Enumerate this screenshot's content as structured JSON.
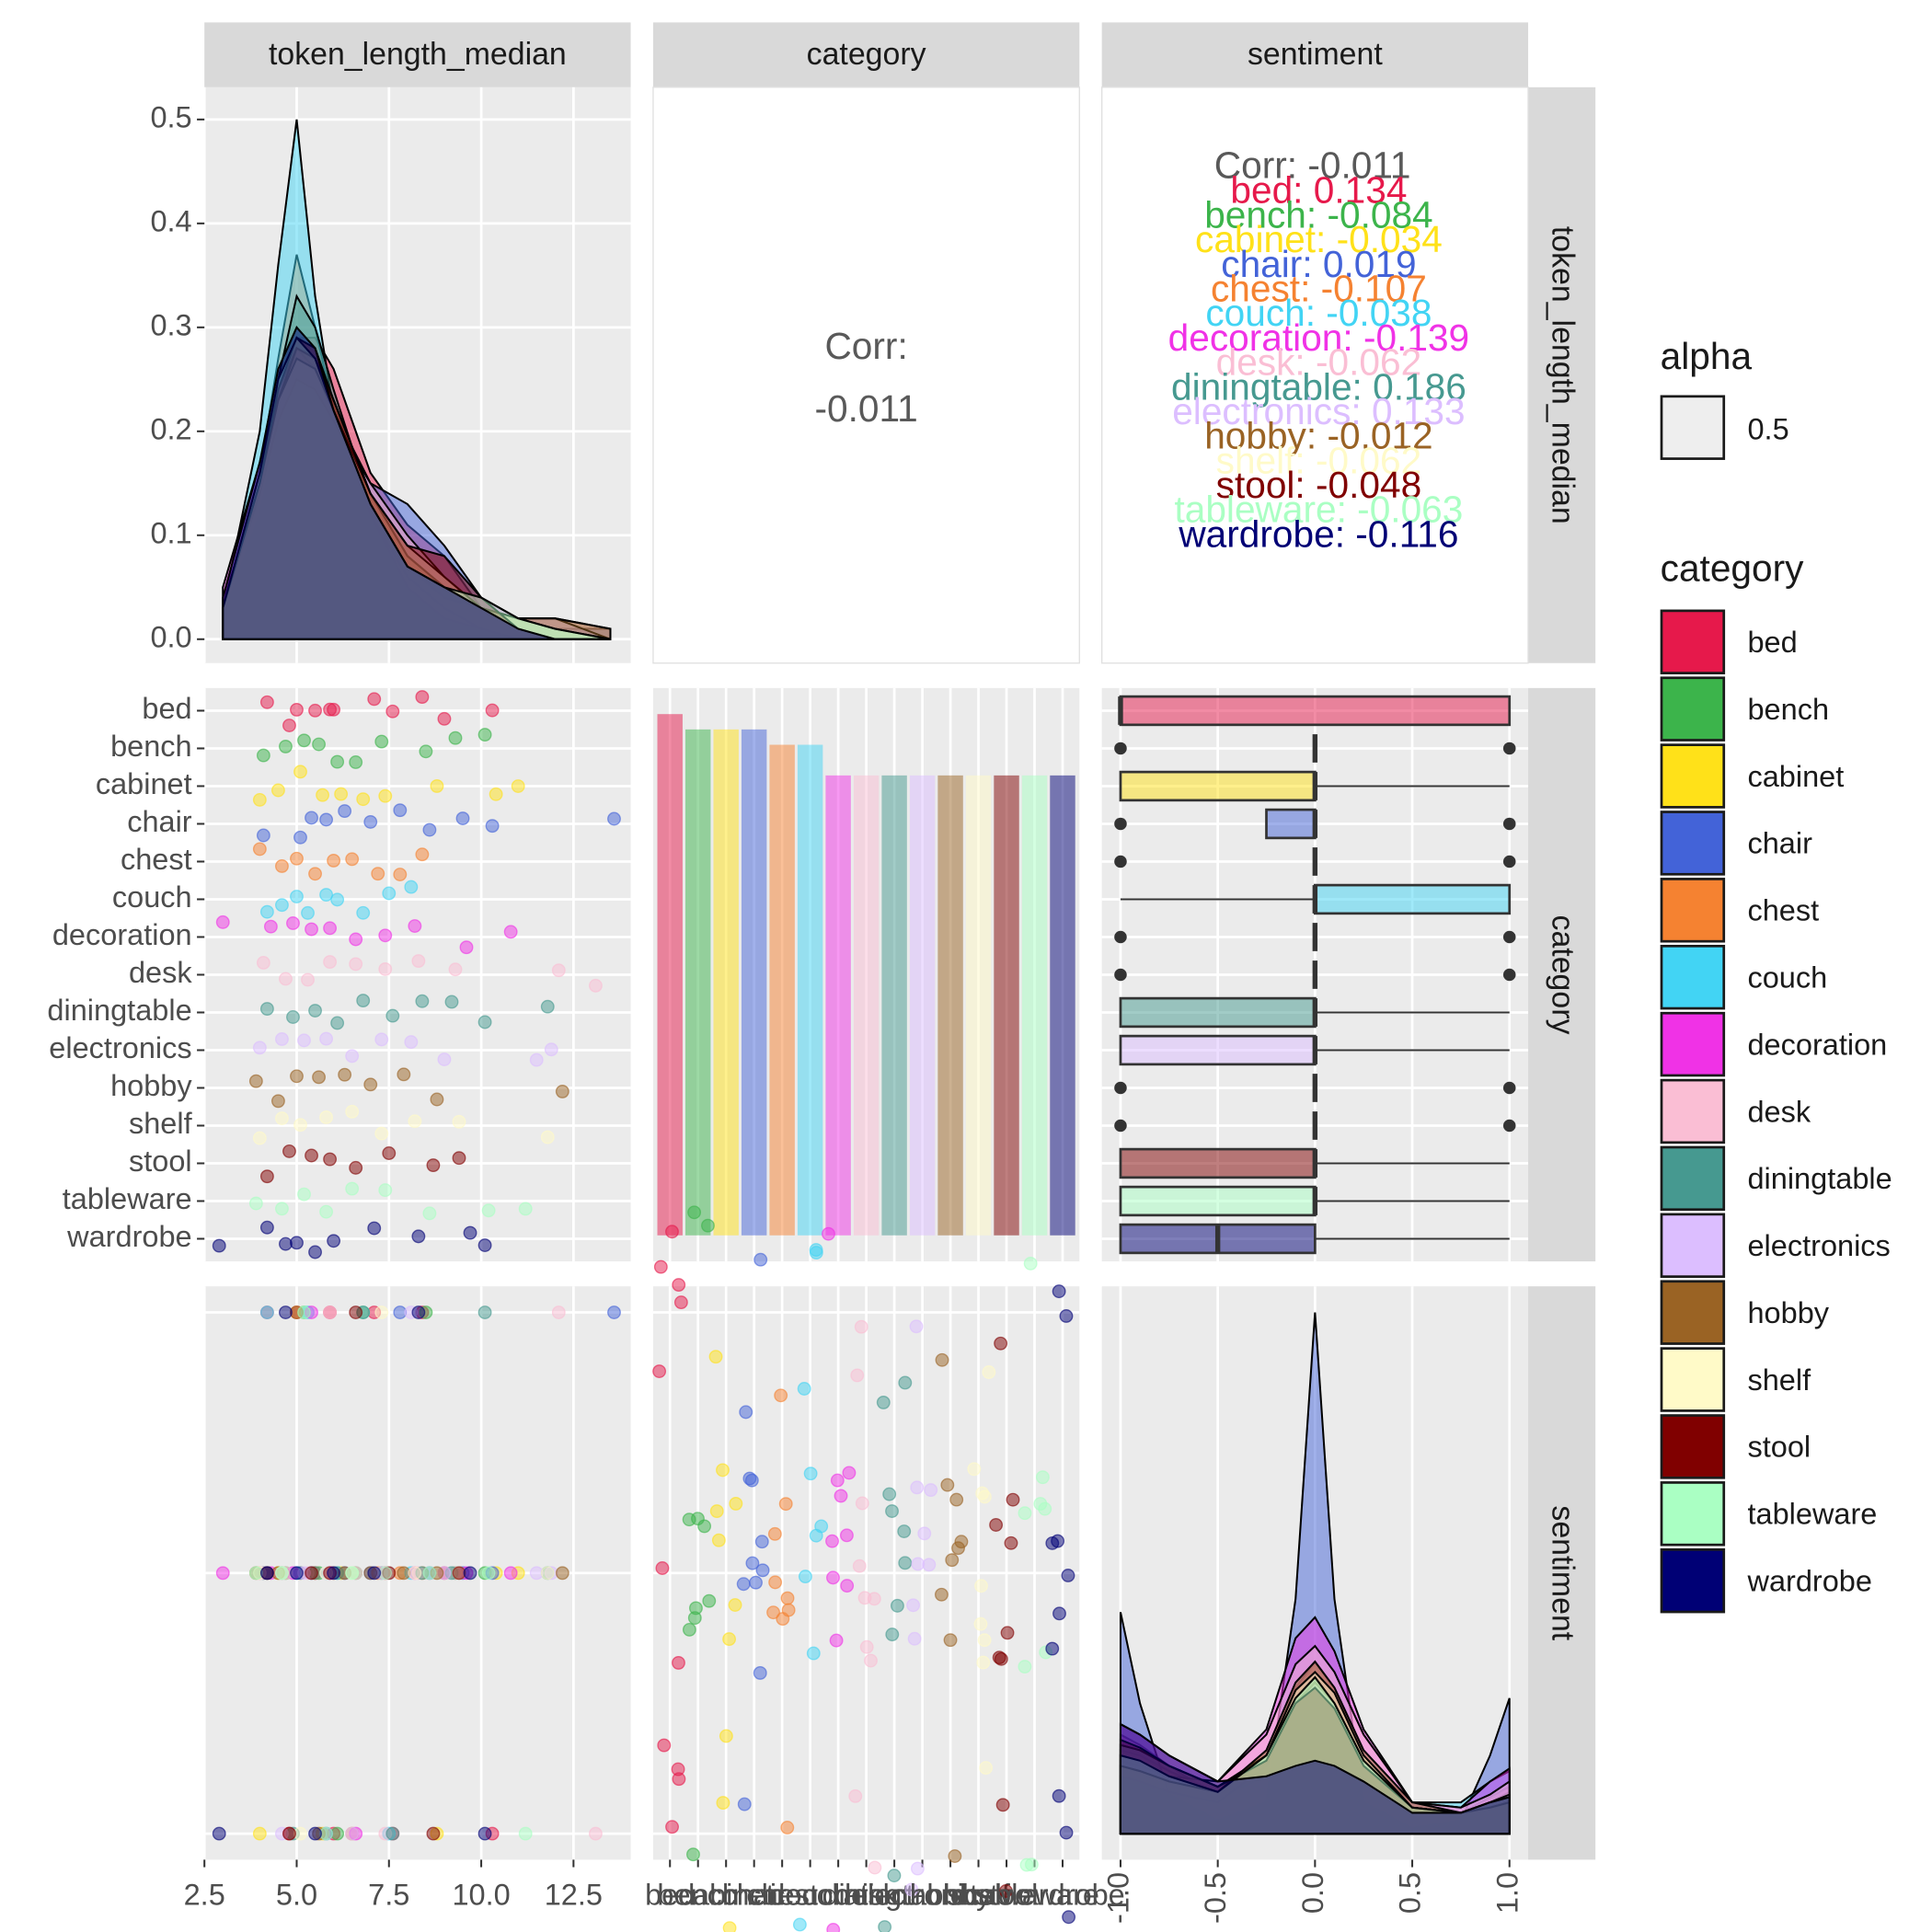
{
  "strips": {
    "top": [
      "token_length_median",
      "category",
      "sentiment"
    ],
    "right": [
      "token_length_median",
      "category",
      "sentiment"
    ]
  },
  "legend": {
    "alpha_title": "alpha",
    "alpha_value": 0.5,
    "category_title": "category"
  },
  "categories": [
    "bed",
    "bench",
    "cabinet",
    "chair",
    "chest",
    "couch",
    "decoration",
    "desk",
    "diningtable",
    "electronics",
    "hobby",
    "shelf",
    "stool",
    "tableware",
    "wardrobe"
  ],
  "colors": [
    "#E6194B",
    "#3CB44B",
    "#FFE119",
    "#4363D8",
    "#F58231",
    "#42D4F4",
    "#F032E6",
    "#FABED4",
    "#469990",
    "#DCBEFF",
    "#9A6324",
    "#FFFAC8",
    "#800000",
    "#AAFFC3",
    "#000075"
  ],
  "observations": {
    "token_length": [
      [
        4.2,
        4.8,
        5.0,
        5.5,
        5.9,
        6.0,
        7.1,
        7.6,
        8.4,
        9.0,
        10.3
      ],
      [
        4.1,
        4.7,
        5.2,
        5.6,
        6.1,
        6.6,
        7.3,
        8.5,
        9.3,
        10.1
      ],
      [
        4.0,
        4.5,
        5.1,
        5.7,
        6.2,
        6.8,
        7.4,
        8.8,
        10.4,
        11.0
      ],
      [
        4.1,
        5.1,
        5.4,
        5.8,
        6.3,
        7.0,
        7.8,
        8.6,
        9.5,
        10.3,
        13.6
      ],
      [
        4.0,
        4.6,
        5.0,
        5.5,
        6.0,
        6.5,
        7.2,
        7.8,
        8.4
      ],
      [
        4.2,
        4.6,
        5.0,
        5.3,
        5.8,
        6.1,
        6.8,
        7.5,
        8.1
      ],
      [
        3.0,
        4.3,
        4.9,
        5.4,
        5.9,
        6.6,
        7.4,
        8.2,
        9.6,
        10.8
      ],
      [
        4.1,
        4.7,
        5.3,
        5.9,
        6.6,
        7.4,
        8.3,
        9.3,
        12.1,
        13.1
      ],
      [
        4.2,
        4.9,
        5.5,
        6.1,
        6.8,
        7.6,
        8.4,
        9.2,
        10.1,
        11.8
      ],
      [
        4.0,
        4.6,
        5.2,
        5.8,
        6.5,
        7.3,
        8.1,
        9.0,
        11.5,
        11.9
      ],
      [
        3.9,
        4.5,
        5.0,
        5.6,
        6.3,
        7.0,
        7.9,
        8.8,
        12.2
      ],
      [
        4.0,
        4.6,
        5.1,
        5.8,
        6.5,
        7.3,
        8.2,
        9.4,
        11.8
      ],
      [
        4.2,
        4.8,
        5.4,
        5.9,
        6.6,
        7.5,
        8.7,
        9.4
      ],
      [
        3.9,
        4.6,
        5.2,
        5.8,
        6.5,
        7.4,
        8.6,
        10.2,
        11.2
      ],
      [
        2.9,
        4.2,
        4.7,
        5.0,
        5.5,
        6.0,
        7.1,
        8.3,
        9.7,
        10.1
      ]
    ],
    "sentiment": [
      [
        1,
        -1,
        1,
        0,
        1,
        -1,
        1,
        -1,
        1,
        0,
        -1
      ],
      [
        0,
        0,
        1,
        0,
        -1,
        0,
        0,
        1,
        0,
        0
      ],
      [
        -1,
        0,
        0,
        -1,
        0,
        1,
        0,
        -1,
        0,
        0
      ],
      [
        0,
        0,
        0,
        -1,
        0,
        0,
        1,
        0,
        0,
        0,
        1
      ],
      [
        0,
        0,
        1,
        0,
        0,
        -1,
        0,
        0,
        0
      ],
      [
        1,
        0,
        0,
        1,
        0,
        0,
        1,
        -1,
        0
      ],
      [
        0,
        0,
        0,
        1,
        0,
        -1,
        0,
        0,
        0,
        0
      ],
      [
        0,
        0,
        0,
        1,
        0,
        -1,
        0,
        0,
        1,
        -1
      ],
      [
        0,
        -1,
        0,
        0,
        1,
        -1,
        0,
        0,
        1,
        0
      ],
      [
        0,
        -1,
        0,
        0,
        -1,
        0,
        1,
        0,
        0,
        0
      ],
      [
        0,
        0,
        1,
        -1,
        0,
        0,
        0,
        0,
        0
      ],
      [
        0,
        0,
        -1,
        0,
        0,
        1,
        0,
        0,
        0
      ],
      [
        0,
        -1,
        0,
        0,
        1,
        0,
        -1,
        0,
        0
      ],
      [
        0,
        0,
        1,
        -1,
        0,
        0,
        0,
        0,
        -1
      ],
      [
        -1,
        0,
        1,
        0,
        -1,
        0,
        0,
        1,
        0,
        -1
      ]
    ]
  },
  "chart_data": [
    {
      "type": "density",
      "x": [
        3,
        4,
        4.5,
        5,
        5.5,
        6,
        7,
        8,
        9,
        10,
        11,
        12,
        13.5
      ],
      "values": [
        [
          0.03,
          0.14,
          0.23,
          0.29,
          0.29,
          0.26,
          0.16,
          0.11,
          0.08,
          0.03,
          0.01,
          0,
          0
        ],
        [
          0.03,
          0.16,
          0.25,
          0.3,
          0.28,
          0.23,
          0.14,
          0.08,
          0.05,
          0.03,
          0.01,
          0,
          0
        ],
        [
          0.03,
          0.15,
          0.24,
          0.29,
          0.27,
          0.22,
          0.13,
          0.07,
          0.04,
          0.03,
          0.02,
          0,
          0
        ],
        [
          0.02,
          0.12,
          0.2,
          0.26,
          0.26,
          0.22,
          0.15,
          0.13,
          0.09,
          0.04,
          0.01,
          0.01,
          0.01
        ],
        [
          0.03,
          0.16,
          0.27,
          0.37,
          0.3,
          0.22,
          0.12,
          0.06,
          0.03,
          0.01,
          0,
          0,
          0
        ],
        [
          0.03,
          0.2,
          0.36,
          0.5,
          0.33,
          0.22,
          0.12,
          0.05,
          0.02,
          0.01,
          0,
          0,
          0
        ],
        [
          0.05,
          0.17,
          0.24,
          0.28,
          0.26,
          0.22,
          0.14,
          0.08,
          0.05,
          0.04,
          0.02,
          0.01,
          0
        ],
        [
          0.03,
          0.14,
          0.21,
          0.25,
          0.24,
          0.21,
          0.15,
          0.1,
          0.06,
          0.03,
          0.02,
          0.02,
          0.01
        ],
        [
          0.03,
          0.15,
          0.25,
          0.33,
          0.3,
          0.24,
          0.13,
          0.07,
          0.05,
          0.03,
          0.02,
          0.01,
          0
        ],
        [
          0.03,
          0.15,
          0.23,
          0.28,
          0.27,
          0.23,
          0.14,
          0.08,
          0.05,
          0.03,
          0.02,
          0.02,
          0
        ],
        [
          0.03,
          0.15,
          0.23,
          0.28,
          0.27,
          0.23,
          0.14,
          0.08,
          0.05,
          0.03,
          0.02,
          0.02,
          0.01
        ],
        [
          0.03,
          0.15,
          0.23,
          0.27,
          0.26,
          0.22,
          0.14,
          0.09,
          0.06,
          0.03,
          0.02,
          0.01,
          0
        ],
        [
          0.03,
          0.15,
          0.24,
          0.29,
          0.28,
          0.23,
          0.14,
          0.09,
          0.08,
          0.04,
          0.01,
          0,
          0
        ],
        [
          0.03,
          0.16,
          0.25,
          0.29,
          0.27,
          0.22,
          0.13,
          0.07,
          0.05,
          0.04,
          0.02,
          0.01,
          0
        ],
        [
          0.04,
          0.17,
          0.26,
          0.3,
          0.28,
          0.22,
          0.13,
          0.07,
          0.05,
          0.03,
          0.01,
          0,
          0
        ]
      ],
      "xlim": [
        2.5,
        14.05
      ],
      "ylim": [
        -0.023,
        0.531
      ],
      "xgrid": [
        2.5,
        5,
        7.5,
        10,
        12.5
      ],
      "yticks": [
        {
          "value": 0,
          "label": "0.0"
        },
        0.1,
        0.2,
        0.3,
        0.4,
        0.5
      ],
      "grid": true
    },
    {
      "type": "corr",
      "label": "Corr:",
      "value": -0.011
    },
    {
      "type": "corr_groups",
      "overall": "Corr: -0.011",
      "groups": [
        {
          "value": 0.134,
          "label": "bed: 0.134"
        },
        {
          "value": -0.084,
          "label": "bench: -0.084"
        },
        {
          "value": -0.034,
          "label": "cabinet: -0.034"
        },
        {
          "value": 0.019,
          "label": "chair: 0.019"
        },
        {
          "value": -0.107,
          "label": "chest: -0.107"
        },
        {
          "value": -0.038,
          "label": "couch: -0.038"
        },
        {
          "value": -0.139,
          "label": "decoration: -0.139"
        },
        {
          "value": -0.062,
          "label": "desk: -0.062"
        },
        {
          "value": 0.186,
          "label": "diningtable: 0.186"
        },
        {
          "value": 0.133,
          "label": "electronics: 0.133"
        },
        {
          "value": -0.012,
          "label": "hobby: -0.012"
        },
        {
          "value": -0.062,
          "label": "shelf: -0.062"
        },
        {
          "value": -0.048,
          "label": "stool: -0.048"
        },
        {
          "value": -0.063,
          "label": "tableware: -0.063"
        },
        {
          "value": -0.116,
          "label": "wardrobe: -0.116"
        }
      ]
    },
    {
      "type": "strip",
      "xlim": [
        2.5,
        14.05
      ],
      "xgrid": [
        2.5,
        5,
        7.5,
        10,
        12.5
      ]
    },
    {
      "type": "count_bar",
      "values": [
        34,
        33,
        33,
        33,
        32,
        32,
        30,
        30,
        30,
        30,
        30,
        30,
        30,
        30,
        30
      ],
      "ylim": [
        -1.7,
        35.7
      ]
    },
    {
      "type": "box",
      "xlim": [
        -1.096,
        1.096
      ],
      "xgrid": [
        -1,
        -0.5,
        0,
        0.5,
        1
      ],
      "boxes": [
        {
          "low": -1,
          "q1": -1,
          "median": -1,
          "q3": 1,
          "high": 1,
          "outliers": []
        },
        {
          "low": 0,
          "q1": 0,
          "median": 0,
          "q3": 0,
          "high": 0,
          "outliers": [
            -1,
            1
          ]
        },
        {
          "low": -1,
          "q1": -1,
          "median": 0,
          "q3": 0,
          "high": 1,
          "outliers": []
        },
        {
          "low": -0.25,
          "q1": -0.25,
          "median": 0,
          "q3": 0,
          "high": 0,
          "outliers": [
            -1,
            1
          ]
        },
        {
          "low": 0,
          "q1": 0,
          "median": 0,
          "q3": 0,
          "high": 0,
          "outliers": [
            -1,
            1
          ]
        },
        {
          "low": -1,
          "q1": 0,
          "median": 0,
          "q3": 1,
          "high": 1,
          "outliers": []
        },
        {
          "low": 0,
          "q1": 0,
          "median": 0,
          "q3": 0,
          "high": 0,
          "outliers": [
            -1,
            1
          ]
        },
        {
          "low": 0,
          "q1": 0,
          "median": 0,
          "q3": 0,
          "high": 0,
          "outliers": [
            -1,
            1
          ]
        },
        {
          "low": -1,
          "q1": -1,
          "median": 0,
          "q3": 0,
          "high": 1,
          "outliers": []
        },
        {
          "low": -1,
          "q1": -1,
          "median": 0,
          "q3": 0,
          "high": 1,
          "outliers": []
        },
        {
          "low": 0,
          "q1": 0,
          "median": 0,
          "q3": 0,
          "high": 0,
          "outliers": [
            -1,
            1
          ]
        },
        {
          "low": 0,
          "q1": 0,
          "median": 0,
          "q3": 0,
          "high": 0,
          "outliers": [
            -1,
            1
          ]
        },
        {
          "low": -1,
          "q1": -1,
          "median": 0,
          "q3": 0,
          "high": 1,
          "outliers": []
        },
        {
          "low": -1,
          "q1": -1,
          "median": 0,
          "q3": 0,
          "high": 1,
          "outliers": []
        },
        {
          "low": -1,
          "q1": -1,
          "median": -0.5,
          "q3": 0,
          "high": 1,
          "outliers": []
        }
      ]
    },
    {
      "type": "scatter",
      "xlim": [
        2.5,
        14.05
      ],
      "ylim": [
        -1.1,
        1.1
      ],
      "ygrid": [
        -1,
        0,
        1
      ],
      "xticks": [
        2.5,
        {
          "value": 5,
          "label": "5.0"
        },
        7.5,
        {
          "value": 10,
          "label": "10.0"
        },
        12.5
      ]
    },
    {
      "type": "jitter_cat",
      "ylim": [
        -1.1,
        1.1
      ],
      "ygrid": [
        -1,
        0,
        1
      ]
    },
    {
      "type": "density_x",
      "x": [
        -1,
        -0.9,
        -0.75,
        -0.5,
        -0.25,
        -0.1,
        0,
        0.1,
        0.25,
        0.5,
        0.75,
        0.9,
        1
      ],
      "values": [
        [
          0.38,
          0.34,
          0.26,
          0.14,
          0.22,
          0.42,
          0.5,
          0.42,
          0.22,
          0.08,
          0.08,
          0.14,
          0.18
        ],
        [
          0.3,
          0.28,
          0.22,
          0.16,
          0.3,
          0.55,
          0.65,
          0.55,
          0.3,
          0.1,
          0.08,
          0.12,
          0.15
        ],
        [
          0.32,
          0.3,
          0.24,
          0.16,
          0.28,
          0.5,
          0.58,
          0.5,
          0.28,
          0.1,
          0.06,
          0.08,
          0.1
        ],
        [
          0.85,
          0.5,
          0.15,
          0.05,
          0.12,
          0.9,
          2.0,
          0.9,
          0.12,
          0.02,
          0.05,
          0.3,
          0.52
        ],
        [
          0.28,
          0.26,
          0.22,
          0.16,
          0.3,
          0.56,
          0.66,
          0.56,
          0.3,
          0.1,
          0.08,
          0.12,
          0.16
        ],
        [
          0.22,
          0.2,
          0.16,
          0.12,
          0.26,
          0.5,
          0.6,
          0.5,
          0.28,
          0.12,
          0.12,
          0.2,
          0.24
        ],
        [
          0.42,
          0.38,
          0.3,
          0.2,
          0.4,
          0.75,
          0.83,
          0.7,
          0.4,
          0.12,
          0.1,
          0.2,
          0.25
        ],
        [
          0.3,
          0.28,
          0.22,
          0.2,
          0.38,
          0.65,
          0.72,
          0.62,
          0.38,
          0.12,
          0.1,
          0.15,
          0.2
        ],
        [
          0.34,
          0.32,
          0.26,
          0.18,
          0.3,
          0.52,
          0.6,
          0.5,
          0.28,
          0.1,
          0.08,
          0.12,
          0.14
        ],
        [
          0.34,
          0.32,
          0.26,
          0.18,
          0.3,
          0.5,
          0.58,
          0.5,
          0.28,
          0.1,
          0.08,
          0.12,
          0.15
        ],
        [
          0.26,
          0.24,
          0.2,
          0.16,
          0.32,
          0.58,
          0.66,
          0.56,
          0.32,
          0.12,
          0.08,
          0.1,
          0.12
        ],
        [
          0.26,
          0.24,
          0.2,
          0.16,
          0.3,
          0.55,
          0.62,
          0.54,
          0.3,
          0.1,
          0.08,
          0.1,
          0.12
        ],
        [
          0.36,
          0.33,
          0.26,
          0.18,
          0.28,
          0.5,
          0.56,
          0.48,
          0.26,
          0.1,
          0.08,
          0.12,
          0.14
        ],
        [
          0.3,
          0.28,
          0.22,
          0.16,
          0.3,
          0.52,
          0.6,
          0.5,
          0.28,
          0.1,
          0.08,
          0.12,
          0.14
        ],
        [
          0.42,
          0.38,
          0.3,
          0.2,
          0.22,
          0.26,
          0.28,
          0.26,
          0.2,
          0.08,
          0.08,
          0.12,
          0.14
        ]
      ],
      "xlim": [
        -1.096,
        1.096
      ],
      "ylim": [
        -0.1,
        2.1
      ],
      "xticks": [
        {
          "value": -1,
          "label": "-1.0"
        },
        -0.5,
        {
          "value": 0,
          "label": "0.0"
        },
        0.5,
        {
          "value": 1,
          "label": "1.0"
        }
      ]
    }
  ]
}
